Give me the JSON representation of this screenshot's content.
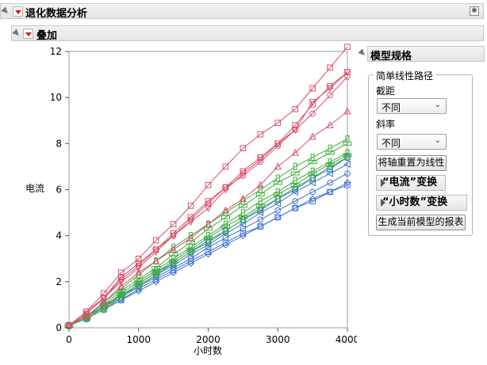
{
  "report": {
    "title": "退化数据分析",
    "overlay_title": "叠加"
  },
  "model_spec": {
    "title": "模型规格",
    "group_title": "简单线性路径",
    "intercept_label": "截距",
    "intercept_value": "不同",
    "slope_label": "斜率",
    "slope_value": "不同",
    "reset_axes_button": "将轴重置为线性",
    "current_transform_label": "“电流”变换",
    "hours_transform_label": "“小时数”变换",
    "generate_report_button": "生成当前模型的报表"
  },
  "colors": {
    "red": "#d9506a",
    "green": "#3fae3f",
    "blue": "#3d72d6",
    "menu_triangle": "#d01818"
  },
  "chart_data": {
    "type": "line",
    "xlabel": "小时数",
    "ylabel": "电流",
    "xlim": [
      0,
      4000
    ],
    "ylim": [
      0,
      12
    ],
    "x_ticks": [
      0,
      1000,
      2000,
      3000,
      4000
    ],
    "y_ticks": [
      0,
      2,
      4,
      6,
      8,
      10,
      12
    ],
    "x_tick_labels": [
      "0",
      "1000",
      "2000",
      "3000",
      "4000"
    ],
    "y_tick_labels": [
      "0",
      "2",
      "4",
      "6",
      "8",
      "10",
      "12"
    ],
    "x": [
      0,
      250,
      500,
      750,
      1000,
      1250,
      1500,
      1750,
      2000,
      2250,
      2500,
      2750,
      3000,
      3250,
      3500,
      3750,
      4000
    ],
    "grid": false,
    "series": [
      {
        "group": "red",
        "marker": "square",
        "values": [
          0.1,
          0.7,
          1.5,
          2.4,
          3.0,
          3.8,
          4.5,
          5.3,
          6.2,
          7.0,
          7.8,
          8.4,
          8.9,
          9.5,
          10.4,
          11.3,
          12.2
        ]
      },
      {
        "group": "red",
        "marker": "circle",
        "values": [
          0.1,
          0.6,
          1.3,
          2.1,
          2.7,
          3.4,
          4.0,
          4.7,
          5.4,
          6.1,
          6.6,
          7.2,
          7.9,
          8.6,
          9.3,
          10.1,
          10.9
        ]
      },
      {
        "group": "red",
        "marker": "triangle-down",
        "values": [
          0.1,
          0.6,
          1.3,
          2.0,
          2.6,
          3.3,
          4.0,
          4.6,
          5.2,
          6.0,
          6.7,
          7.3,
          8.0,
          8.6,
          9.8,
          10.4,
          11.1
        ]
      },
      {
        "group": "red",
        "marker": "triangle-up",
        "values": [
          0.1,
          0.5,
          1.1,
          1.8,
          2.4,
          2.9,
          3.4,
          3.9,
          4.5,
          5.1,
          5.6,
          6.2,
          7.0,
          7.6,
          8.3,
          8.8,
          9.4
        ]
      },
      {
        "group": "red",
        "marker": "square",
        "values": [
          0.1,
          0.7,
          1.3,
          2.2,
          2.8,
          3.4,
          4.1,
          4.8,
          5.5,
          6.1,
          6.8,
          7.4,
          8.0,
          8.8,
          9.7,
          10.5,
          11.1
        ]
      },
      {
        "group": "green",
        "marker": "rect-v",
        "values": [
          0.1,
          0.5,
          1.1,
          1.7,
          2.3,
          2.9,
          3.5,
          4.0,
          4.5,
          5.0,
          5.5,
          6.0,
          6.5,
          7.0,
          7.4,
          7.8,
          8.2
        ]
      },
      {
        "group": "green",
        "marker": "rect-h",
        "values": [
          0.1,
          0.5,
          1.0,
          1.6,
          2.1,
          2.6,
          3.2,
          3.7,
          4.3,
          4.8,
          5.3,
          5.8,
          6.3,
          6.7,
          7.2,
          7.6,
          8.0
        ]
      },
      {
        "group": "green",
        "marker": "rect-v",
        "values": [
          0.1,
          0.4,
          0.9,
          1.5,
          2.0,
          2.5,
          3.0,
          3.5,
          4.0,
          4.5,
          5.0,
          5.5,
          5.9,
          6.4,
          6.8,
          7.2,
          7.6
        ]
      },
      {
        "group": "green",
        "marker": "rect-h",
        "values": [
          0.1,
          0.4,
          0.9,
          1.4,
          1.9,
          2.4,
          2.9,
          3.4,
          3.9,
          4.4,
          4.8,
          5.3,
          5.8,
          6.2,
          6.7,
          7.1,
          7.5
        ]
      },
      {
        "group": "green",
        "marker": "rect-v",
        "values": [
          0.1,
          0.4,
          0.8,
          1.3,
          1.8,
          2.3,
          2.8,
          3.3,
          3.7,
          4.2,
          4.7,
          5.2,
          5.6,
          6.1,
          6.5,
          7.0,
          7.4
        ]
      },
      {
        "group": "blue",
        "marker": "square",
        "values": [
          0.1,
          0.4,
          0.8,
          1.2,
          1.7,
          2.1,
          2.5,
          2.9,
          3.3,
          3.7,
          4.1,
          4.4,
          4.8,
          5.2,
          5.5,
          5.9,
          6.2
        ]
      },
      {
        "group": "blue",
        "marker": "circle",
        "values": [
          0.1,
          0.4,
          0.9,
          1.3,
          1.8,
          2.2,
          2.6,
          3.0,
          3.5,
          3.9,
          4.3,
          4.7,
          5.1,
          5.5,
          5.9,
          6.3,
          6.7
        ]
      },
      {
        "group": "blue",
        "marker": "triangle-left",
        "values": [
          0.1,
          0.5,
          0.9,
          1.4,
          1.8,
          2.3,
          2.7,
          3.2,
          3.6,
          4.1,
          4.5,
          5.0,
          5.4,
          5.9,
          6.3,
          6.7,
          7.1
        ]
      },
      {
        "group": "blue",
        "marker": "diamond",
        "values": [
          0.1,
          0.4,
          0.8,
          1.2,
          1.6,
          2.0,
          2.4,
          2.8,
          3.2,
          3.6,
          4.0,
          4.4,
          4.8,
          5.2,
          5.6,
          5.9,
          6.3
        ]
      },
      {
        "group": "blue",
        "marker": "square",
        "values": [
          0.1,
          0.5,
          1.0,
          1.4,
          1.9,
          2.4,
          2.8,
          3.3,
          3.8,
          4.2,
          4.7,
          5.1,
          5.6,
          6.0,
          6.5,
          6.9,
          7.4
        ]
      }
    ]
  }
}
